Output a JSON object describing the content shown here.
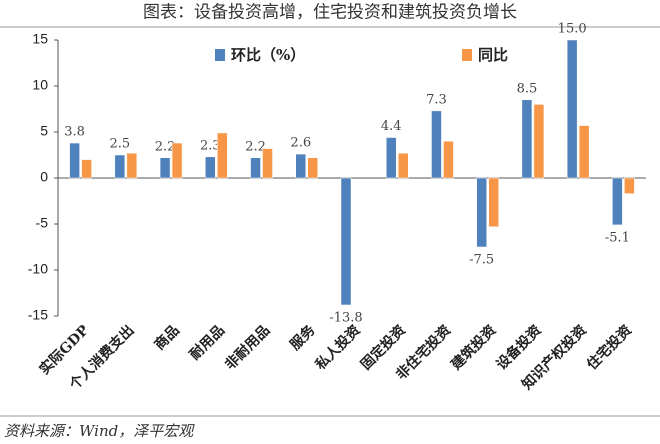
{
  "chart_data": {
    "type": "bar",
    "title": "图表：设备投资高增，住宅投资和建筑投资负增长",
    "source": "资料来源：Wind，泽平宏观",
    "categories": [
      "实际GDP",
      "个人消费支出",
      "商品",
      "耐用品",
      "非耐用品",
      "服务",
      "私人投资",
      "固定投资",
      "非住宅投资",
      "建筑投资",
      "设备投资",
      "知识产权投资",
      "住宅投资"
    ],
    "series": [
      {
        "name": "环比（%）",
        "color": "#4f81bd",
        "values": [
          3.8,
          2.5,
          2.2,
          2.3,
          2.2,
          2.6,
          -13.8,
          4.4,
          7.3,
          -7.5,
          8.5,
          15,
          -5.1
        ],
        "value_labels": [
          "3.8",
          "2.5",
          "2.2",
          "2.3",
          "2.2",
          "2.6",
          "-13.8",
          "4.4",
          "7.3",
          "-7.5",
          "8.5",
          "15.0",
          "-5.1"
        ]
      },
      {
        "name": "同比",
        "color": "#f79646",
        "values": [
          2.0,
          2.7,
          3.8,
          4.9,
          3.2,
          2.2,
          null,
          2.7,
          4.0,
          -5.3,
          8.0,
          5.7,
          -1.7
        ]
      }
    ],
    "ylim": [
      -15,
      15
    ],
    "yticks": [
      -15,
      -10,
      -5,
      0,
      5,
      10,
      15
    ]
  }
}
